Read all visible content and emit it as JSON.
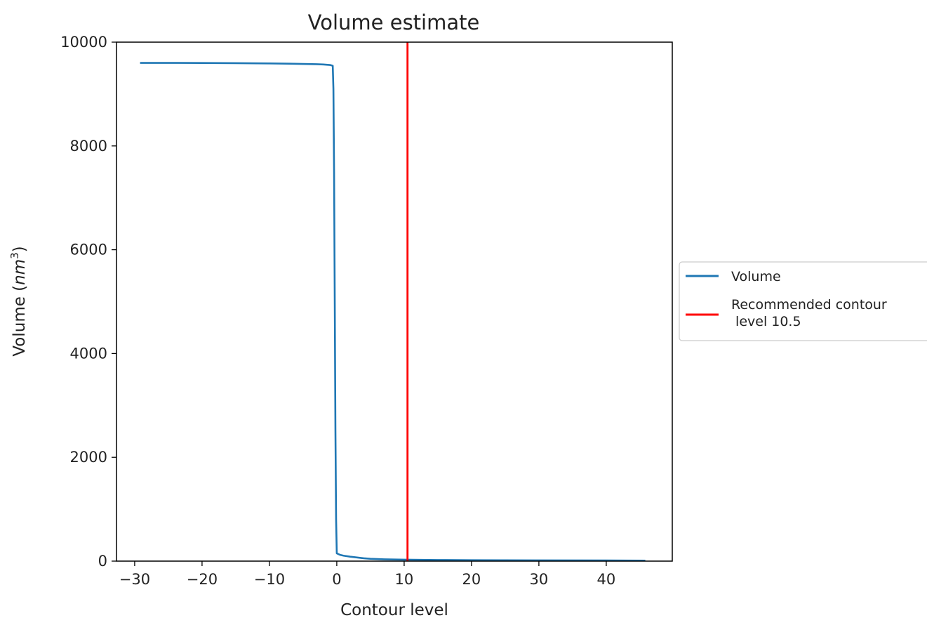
{
  "chart_data": {
    "type": "line",
    "title": "Volume estimate",
    "xlabel": "Contour level",
    "ylabel_prefix": "Volume (",
    "ylabel_unit_base": "nm",
    "ylabel_unit_exp": "3",
    "ylabel_suffix": ")",
    "xlim": [
      -32.7,
      49.8
    ],
    "ylim": [
      0,
      10000
    ],
    "xticks": [
      {
        "value": -30,
        "label": "−30"
      },
      {
        "value": -20,
        "label": "−20"
      },
      {
        "value": -10,
        "label": "−10"
      },
      {
        "value": 0,
        "label": "0"
      },
      {
        "value": 10,
        "label": "10"
      },
      {
        "value": 20,
        "label": "20"
      },
      {
        "value": 30,
        "label": "30"
      },
      {
        "value": 40,
        "label": "40"
      }
    ],
    "yticks": [
      {
        "value": 0,
        "label": "0"
      },
      {
        "value": 2000,
        "label": "2000"
      },
      {
        "value": 4000,
        "label": "4000"
      },
      {
        "value": 6000,
        "label": "6000"
      },
      {
        "value": 8000,
        "label": "8000"
      },
      {
        "value": 10000,
        "label": "10000"
      }
    ],
    "grid": false,
    "legend_position": "center-right outside",
    "series": [
      {
        "name": "Volume",
        "color": "#1f77b4",
        "x": [
          -29.2,
          -25,
          -20,
          -15,
          -10,
          -7,
          -5,
          -3,
          -2,
          -1,
          -0.6,
          -0.5,
          -0.4,
          -0.3,
          -0.2,
          -0.1,
          0,
          0.5,
          1,
          2,
          3,
          4,
          5,
          7,
          10,
          15,
          20,
          30,
          40,
          45.8
        ],
        "y": [
          9600,
          9600,
          9598,
          9595,
          9590,
          9585,
          9580,
          9575,
          9570,
          9560,
          9545,
          9100,
          7500,
          5000,
          2500,
          800,
          150,
          120,
          105,
          85,
          70,
          55,
          45,
          35,
          28,
          22,
          18,
          15,
          12,
          10
        ]
      },
      {
        "name": "Recommended contour\n level 10.5",
        "color": "#ff0000",
        "x": [
          10.5,
          10.5
        ],
        "y": [
          0,
          10000
        ]
      }
    ]
  }
}
